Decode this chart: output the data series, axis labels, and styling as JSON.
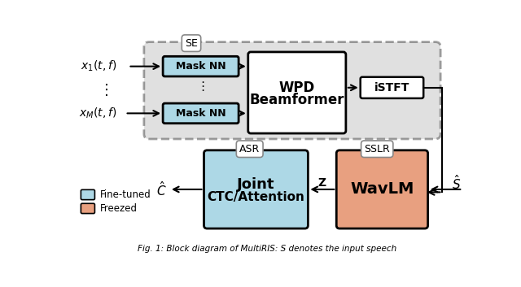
{
  "bg_color": "#ffffff",
  "se_box_color": "#c8c8c8",
  "mask_nn_color": "#add8e6",
  "wpd_color": "#ffffff",
  "istft_color": "#ffffff",
  "asr_color": "#add8e6",
  "wavlm_color": "#e8a080",
  "arrow_color": "#000000",
  "edge_color": "#000000",
  "label_se": "SE",
  "label_asr": "ASR",
  "label_sslr": "SSLR",
  "label_masknn": "Mask NN",
  "label_wpd1": "WPD",
  "label_wpd2": "Beamformer",
  "label_istft": "iSTFT",
  "label_joint1": "Joint",
  "label_joint2": "CTC/Attention",
  "label_wavlm": "WavLM",
  "label_x1": "$x_1(t,f)$",
  "label_xM": "$x_M(t,f)$",
  "label_chat": "$\\hat{C}$",
  "label_z": "Z",
  "label_shat": "$\\hat{S}$",
  "label_ft": "Fine-tuned",
  "label_fz": "Freezed",
  "caption": "Fig. 1: Block diagram of MultiRIS: S denotes the input speech"
}
